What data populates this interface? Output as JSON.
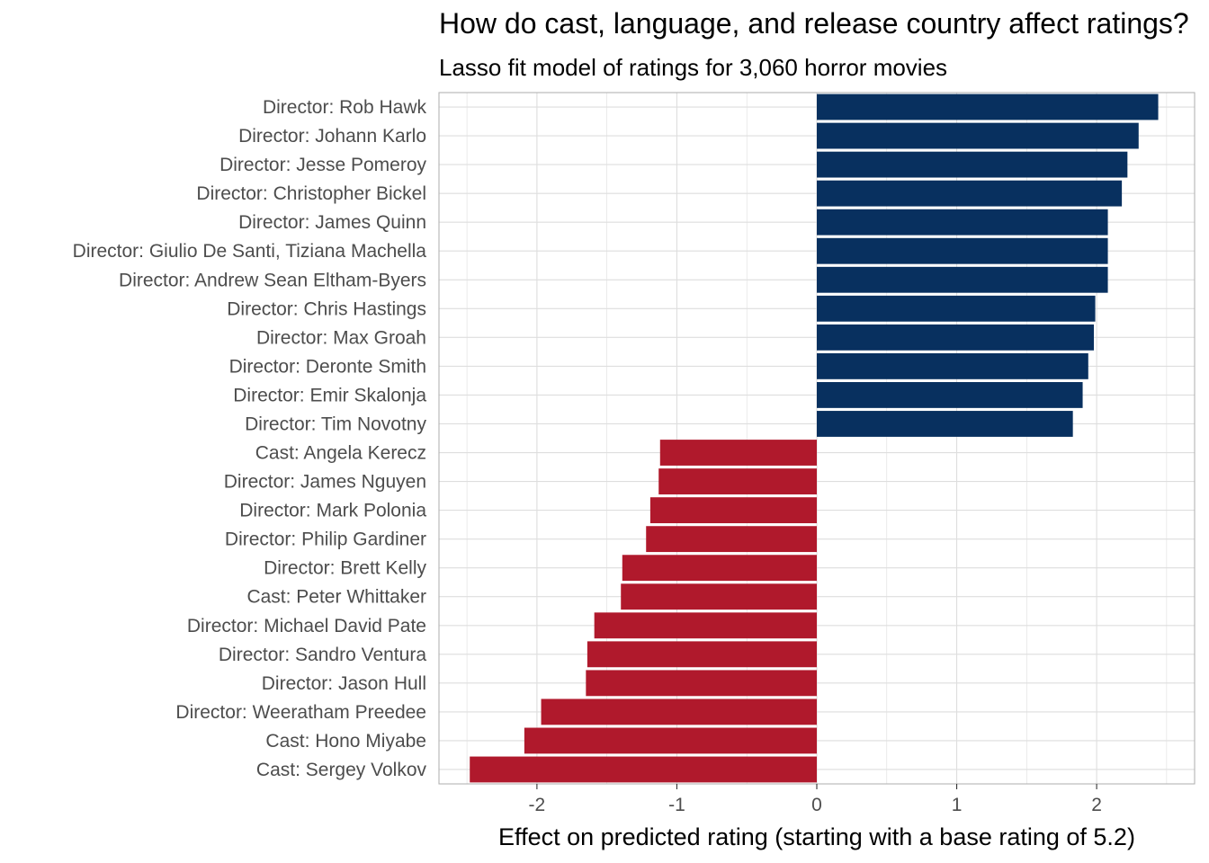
{
  "title": "How do cast, language, and release country affect ratings?",
  "subtitle": "Lasso fit model of ratings for 3,060 horror movies",
  "colors": {
    "positive": "#08305f",
    "negative": "#b0192c",
    "grid": "#dedede",
    "panel_border": "#b3b3b3"
  },
  "chart_data": {
    "type": "bar",
    "orientation": "horizontal",
    "xlabel": "Effect on predicted rating (starting with a base rating of 5.2)",
    "xlim": [
      -2.7,
      2.7
    ],
    "xticks": [
      -2,
      -1,
      0,
      1,
      2
    ],
    "grid": true,
    "legend": "none",
    "categories": [
      "Director: Rob Hawk",
      "Director: Johann Karlo",
      "Director: Jesse Pomeroy",
      "Director: Christopher Bickel",
      "Director: James Quinn",
      "Director: Giulio De Santi, Tiziana Machella",
      "Director: Andrew Sean Eltham-Byers",
      "Director: Chris Hastings",
      "Director: Max Groah",
      "Director: Deronte Smith",
      "Director: Emir Skalonja",
      "Director: Tim Novotny",
      "Cast: Angela Kerecz",
      "Director: James Nguyen",
      "Director: Mark Polonia",
      "Director: Philip Gardiner",
      "Director: Brett Kelly",
      "Cast: Peter Whittaker",
      "Director: Michael David Pate",
      "Director: Sandro Ventura",
      "Director: Jason Hull",
      "Director: Weeratham Preedee",
      "Cast: Hono Miyabe",
      "Cast: Sergey Volkov"
    ],
    "values": [
      2.44,
      2.3,
      2.22,
      2.18,
      2.08,
      2.08,
      2.08,
      1.99,
      1.98,
      1.94,
      1.9,
      1.83,
      -1.12,
      -1.13,
      -1.19,
      -1.22,
      -1.39,
      -1.4,
      -1.59,
      -1.64,
      -1.65,
      -1.97,
      -2.09,
      -2.48
    ]
  }
}
